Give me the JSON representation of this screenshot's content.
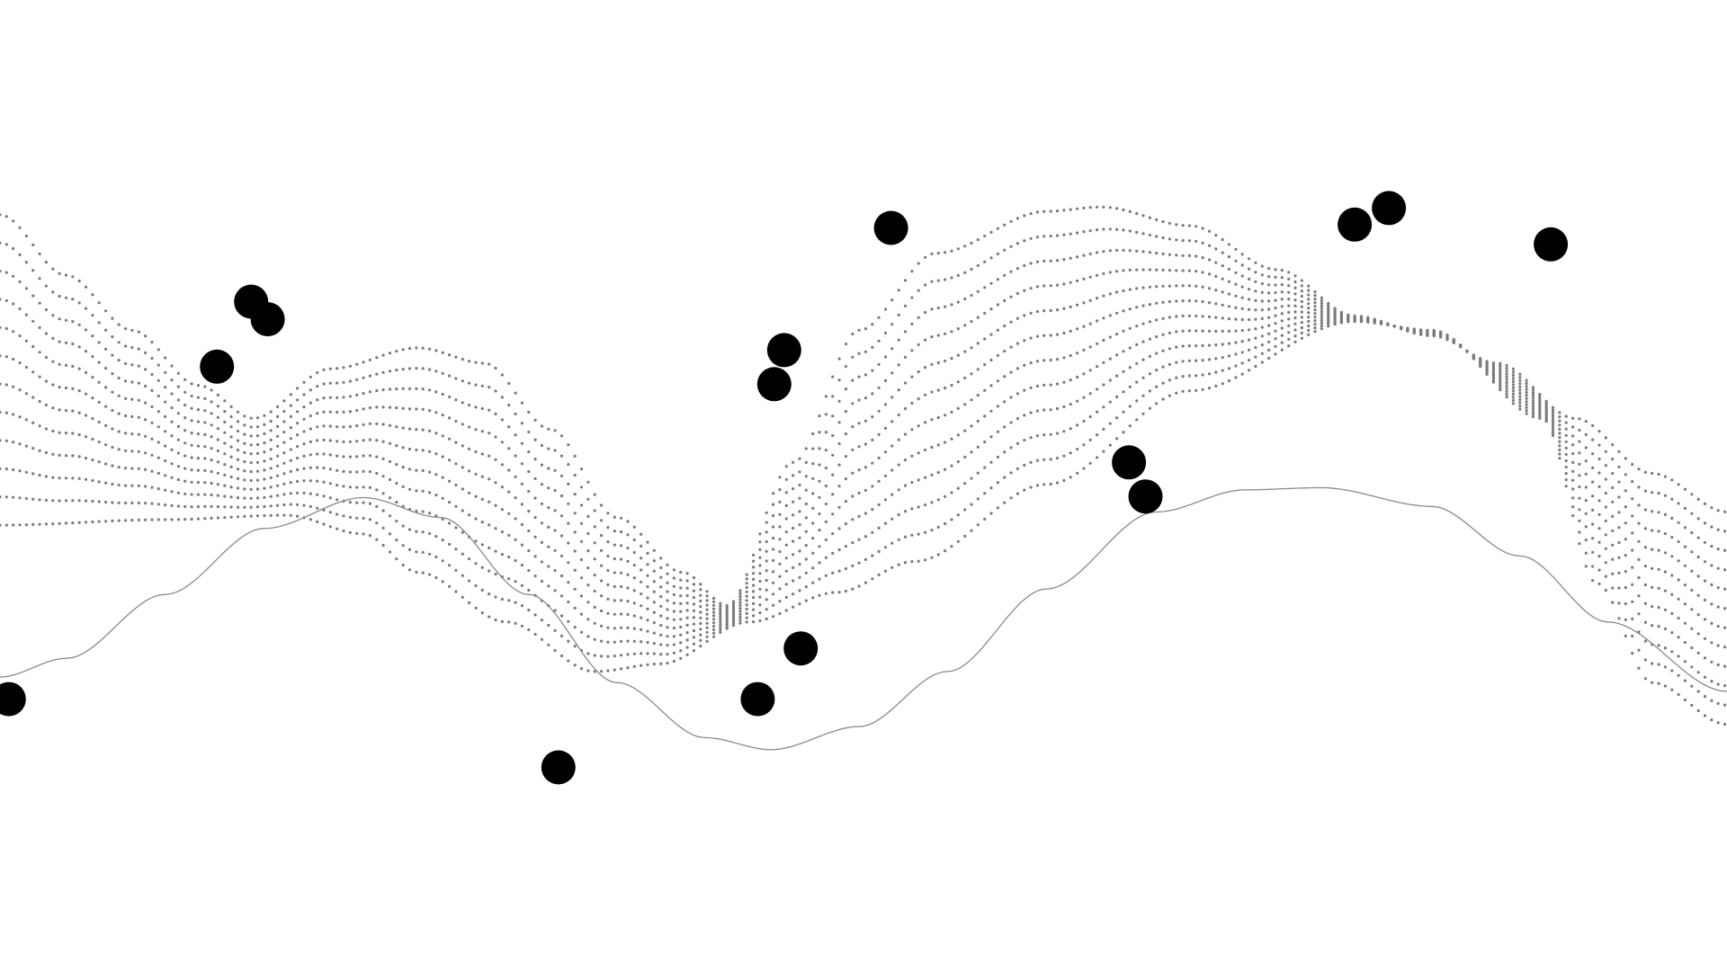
{
  "colors": {
    "background": "#ffffff",
    "dot": "#7a7a7a",
    "line": "#8a8a8a",
    "circle": "#000000"
  }
}
